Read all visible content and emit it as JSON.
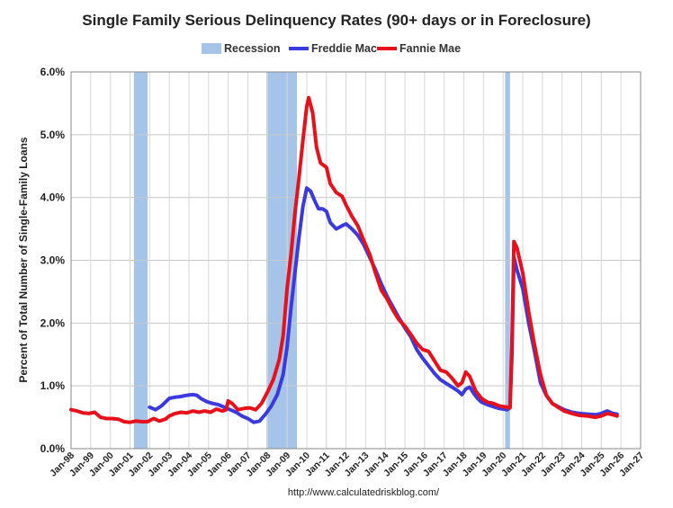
{
  "chart_data": {
    "type": "line",
    "title": "Single Family Serious Delinquency Rates (90+ days or in Foreclosure)",
    "ylabel": "Percent of Total Number of Single-Family Loans",
    "xlabel": "",
    "source": "http://www.calculatedriskblog.com/",
    "ylim": [
      0,
      6.0
    ],
    "xlim": [
      1998.0,
      2027.0
    ],
    "y_ticks": [
      "0.0%",
      "1.0%",
      "2.0%",
      "3.0%",
      "4.0%",
      "5.0%",
      "6.0%"
    ],
    "y_tick_values": [
      0,
      1,
      2,
      3,
      4,
      5,
      6
    ],
    "x_ticks": [
      "Jan-98",
      "Jan-99",
      "Jan-00",
      "Jan-01",
      "Jan-02",
      "Jan-03",
      "Jan-04",
      "Jan-05",
      "Jan-06",
      "Jan-07",
      "Jan-08",
      "Jan-09",
      "Jan-10",
      "Jan-11",
      "Jan-12",
      "Jan-13",
      "Jan-14",
      "Jan-15",
      "Jan-16",
      "Jan-17",
      "Jan-18",
      "Jan-19",
      "Jan-20",
      "Jan-21",
      "Jan-22",
      "Jan-23",
      "Jan-24",
      "Jan-25",
      "Jan-26",
      "Jan-27"
    ],
    "x_tick_values": [
      1998,
      1999,
      2000,
      2001,
      2002,
      2003,
      2004,
      2005,
      2006,
      2007,
      2008,
      2009,
      2010,
      2011,
      2012,
      2013,
      2014,
      2015,
      2016,
      2017,
      2018,
      2019,
      2020,
      2021,
      2022,
      2023,
      2024,
      2025,
      2026,
      2027
    ],
    "grid": true,
    "legend_position": "top",
    "legend": [
      {
        "name": "Recession",
        "color": "#a6c4e8",
        "kind": "box"
      },
      {
        "name": "Freddie Mac",
        "color": "#3a3ae0",
        "kind": "line"
      },
      {
        "name": "Fannie Mae",
        "color": "#e8101a",
        "kind": "line"
      }
    ],
    "recessions": [
      {
        "start": 2001.2,
        "end": 2001.9
      },
      {
        "start": 2007.95,
        "end": 2009.5
      },
      {
        "start": 2020.1,
        "end": 2020.35
      }
    ],
    "series": [
      {
        "name": "Freddie Mac",
        "color": "#3a3ae0",
        "points": [
          [
            2002.0,
            0.66
          ],
          [
            2002.3,
            0.62
          ],
          [
            2002.6,
            0.68
          ],
          [
            2002.8,
            0.74
          ],
          [
            2003.0,
            0.8
          ],
          [
            2003.3,
            0.82
          ],
          [
            2003.6,
            0.83
          ],
          [
            2003.9,
            0.85
          ],
          [
            2004.2,
            0.86
          ],
          [
            2004.4,
            0.85
          ],
          [
            2004.6,
            0.8
          ],
          [
            2004.9,
            0.75
          ],
          [
            2005.2,
            0.72
          ],
          [
            2005.5,
            0.7
          ],
          [
            2005.8,
            0.66
          ],
          [
            2006.1,
            0.62
          ],
          [
            2006.4,
            0.58
          ],
          [
            2006.7,
            0.52
          ],
          [
            2007.0,
            0.48
          ],
          [
            2007.3,
            0.42
          ],
          [
            2007.6,
            0.44
          ],
          [
            2007.9,
            0.55
          ],
          [
            2008.2,
            0.68
          ],
          [
            2008.5,
            0.86
          ],
          [
            2008.8,
            1.18
          ],
          [
            2009.0,
            1.62
          ],
          [
            2009.2,
            2.25
          ],
          [
            2009.4,
            2.8
          ],
          [
            2009.6,
            3.35
          ],
          [
            2009.8,
            3.85
          ],
          [
            2010.0,
            4.15
          ],
          [
            2010.2,
            4.1
          ],
          [
            2010.4,
            3.95
          ],
          [
            2010.6,
            3.82
          ],
          [
            2010.8,
            3.82
          ],
          [
            2011.0,
            3.78
          ],
          [
            2011.2,
            3.6
          ],
          [
            2011.5,
            3.5
          ],
          [
            2011.8,
            3.55
          ],
          [
            2012.0,
            3.58
          ],
          [
            2012.3,
            3.5
          ],
          [
            2012.6,
            3.4
          ],
          [
            2012.9,
            3.25
          ],
          [
            2013.2,
            3.05
          ],
          [
            2013.5,
            2.85
          ],
          [
            2013.8,
            2.62
          ],
          [
            2014.1,
            2.42
          ],
          [
            2014.4,
            2.25
          ],
          [
            2014.7,
            2.08
          ],
          [
            2015.0,
            1.92
          ],
          [
            2015.3,
            1.78
          ],
          [
            2015.6,
            1.58
          ],
          [
            2015.9,
            1.44
          ],
          [
            2016.2,
            1.32
          ],
          [
            2016.5,
            1.2
          ],
          [
            2016.8,
            1.1
          ],
          [
            2017.1,
            1.04
          ],
          [
            2017.4,
            0.98
          ],
          [
            2017.7,
            0.92
          ],
          [
            2017.9,
            0.86
          ],
          [
            2018.1,
            0.95
          ],
          [
            2018.3,
            0.98
          ],
          [
            2018.5,
            0.88
          ],
          [
            2018.7,
            0.8
          ],
          [
            2018.9,
            0.74
          ],
          [
            2019.2,
            0.7
          ],
          [
            2019.5,
            0.67
          ],
          [
            2019.8,
            0.64
          ],
          [
            2020.2,
            0.62
          ],
          [
            2020.35,
            0.65
          ],
          [
            2020.45,
            1.5
          ],
          [
            2020.55,
            3.05
          ],
          [
            2020.7,
            2.85
          ],
          [
            2021.0,
            2.55
          ],
          [
            2021.3,
            2.0
          ],
          [
            2021.6,
            1.55
          ],
          [
            2021.9,
            1.05
          ],
          [
            2022.2,
            0.85
          ],
          [
            2022.5,
            0.72
          ],
          [
            2022.8,
            0.67
          ],
          [
            2023.1,
            0.62
          ],
          [
            2023.5,
            0.58
          ],
          [
            2023.9,
            0.56
          ],
          [
            2024.3,
            0.55
          ],
          [
            2024.7,
            0.54
          ],
          [
            2025.0,
            0.56
          ],
          [
            2025.3,
            0.6
          ],
          [
            2025.6,
            0.56
          ],
          [
            2025.8,
            0.55
          ]
        ]
      },
      {
        "name": "Fannie Mae",
        "color": "#e8101a",
        "points": [
          [
            1998.0,
            0.62
          ],
          [
            1998.3,
            0.6
          ],
          [
            1998.6,
            0.57
          ],
          [
            1998.9,
            0.56
          ],
          [
            1999.2,
            0.58
          ],
          [
            1999.5,
            0.5
          ],
          [
            1999.8,
            0.48
          ],
          [
            2000.1,
            0.48
          ],
          [
            2000.4,
            0.47
          ],
          [
            2000.7,
            0.43
          ],
          [
            2001.0,
            0.42
          ],
          [
            2001.3,
            0.44
          ],
          [
            2001.6,
            0.43
          ],
          [
            2001.9,
            0.43
          ],
          [
            2002.2,
            0.48
          ],
          [
            2002.5,
            0.44
          ],
          [
            2002.8,
            0.47
          ],
          [
            2003.0,
            0.52
          ],
          [
            2003.3,
            0.56
          ],
          [
            2003.6,
            0.58
          ],
          [
            2003.9,
            0.57
          ],
          [
            2004.2,
            0.6
          ],
          [
            2004.5,
            0.58
          ],
          [
            2004.8,
            0.6
          ],
          [
            2005.1,
            0.58
          ],
          [
            2005.4,
            0.63
          ],
          [
            2005.7,
            0.6
          ],
          [
            2005.9,
            0.62
          ],
          [
            2006.0,
            0.76
          ],
          [
            2006.2,
            0.72
          ],
          [
            2006.5,
            0.62
          ],
          [
            2006.8,
            0.64
          ],
          [
            2007.1,
            0.65
          ],
          [
            2007.4,
            0.62
          ],
          [
            2007.7,
            0.72
          ],
          [
            2008.0,
            0.9
          ],
          [
            2008.3,
            1.1
          ],
          [
            2008.6,
            1.42
          ],
          [
            2008.8,
            1.8
          ],
          [
            2009.0,
            2.55
          ],
          [
            2009.2,
            3.1
          ],
          [
            2009.4,
            3.75
          ],
          [
            2009.6,
            4.3
          ],
          [
            2009.8,
            4.9
          ],
          [
            2010.0,
            5.45
          ],
          [
            2010.1,
            5.59
          ],
          [
            2010.3,
            5.35
          ],
          [
            2010.5,
            4.8
          ],
          [
            2010.7,
            4.55
          ],
          [
            2011.0,
            4.48
          ],
          [
            2011.2,
            4.22
          ],
          [
            2011.5,
            4.08
          ],
          [
            2011.8,
            4.02
          ],
          [
            2012.0,
            3.88
          ],
          [
            2012.3,
            3.7
          ],
          [
            2012.6,
            3.55
          ],
          [
            2012.9,
            3.32
          ],
          [
            2013.2,
            3.1
          ],
          [
            2013.5,
            2.8
          ],
          [
            2013.8,
            2.52
          ],
          [
            2014.1,
            2.38
          ],
          [
            2014.4,
            2.2
          ],
          [
            2014.7,
            2.05
          ],
          [
            2015.0,
            1.95
          ],
          [
            2015.3,
            1.82
          ],
          [
            2015.6,
            1.68
          ],
          [
            2015.9,
            1.58
          ],
          [
            2016.2,
            1.55
          ],
          [
            2016.5,
            1.4
          ],
          [
            2016.8,
            1.25
          ],
          [
            2017.1,
            1.22
          ],
          [
            2017.4,
            1.12
          ],
          [
            2017.7,
            1.0
          ],
          [
            2017.9,
            1.05
          ],
          [
            2018.1,
            1.22
          ],
          [
            2018.3,
            1.15
          ],
          [
            2018.6,
            0.92
          ],
          [
            2018.9,
            0.8
          ],
          [
            2019.2,
            0.74
          ],
          [
            2019.5,
            0.72
          ],
          [
            2019.8,
            0.68
          ],
          [
            2020.2,
            0.66
          ],
          [
            2020.35,
            0.65
          ],
          [
            2020.45,
            1.7
          ],
          [
            2020.55,
            3.3
          ],
          [
            2020.7,
            3.2
          ],
          [
            2021.0,
            2.8
          ],
          [
            2021.3,
            2.18
          ],
          [
            2021.6,
            1.65
          ],
          [
            2021.9,
            1.18
          ],
          [
            2022.2,
            0.85
          ],
          [
            2022.5,
            0.72
          ],
          [
            2022.8,
            0.66
          ],
          [
            2023.1,
            0.6
          ],
          [
            2023.5,
            0.56
          ],
          [
            2023.9,
            0.53
          ],
          [
            2024.3,
            0.52
          ],
          [
            2024.7,
            0.5
          ],
          [
            2025.0,
            0.52
          ],
          [
            2025.3,
            0.56
          ],
          [
            2025.6,
            0.54
          ],
          [
            2025.8,
            0.52
          ]
        ]
      }
    ]
  }
}
